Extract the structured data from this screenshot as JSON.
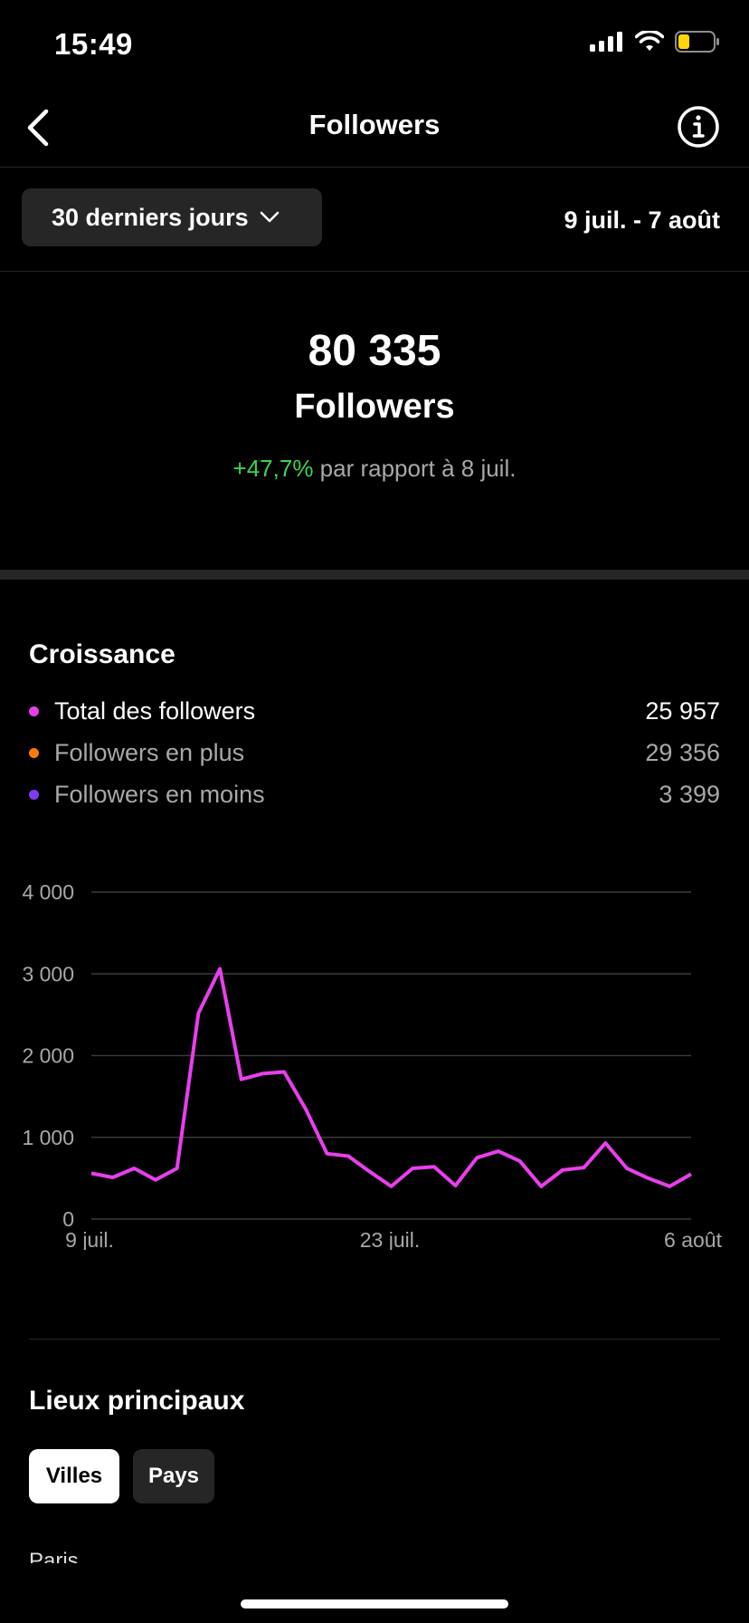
{
  "status_bar": {
    "time": "15:49"
  },
  "nav": {
    "title": "Followers"
  },
  "filter": {
    "period": "30 derniers jours",
    "date_range": "9 juil. - 7 août"
  },
  "summary": {
    "count": "80 335",
    "label": "Followers",
    "change": "+47,7%",
    "change_suffix": "par rapport à 8 juil."
  },
  "growth": {
    "title": "Croissance",
    "legend": [
      {
        "label": "Total des followers",
        "value": "25 957",
        "color": "#e83fec"
      },
      {
        "label": "Followers en plus",
        "value": "29 356",
        "color": "#ff7a00"
      },
      {
        "label": "Followers en moins",
        "value": "3 399",
        "color": "#7f3cf5"
      }
    ]
  },
  "chart_data": {
    "type": "line",
    "title": "",
    "xlabel": "",
    "ylabel": "",
    "ylim": [
      0,
      4000
    ],
    "yticks": [
      0,
      1000,
      2000,
      3000,
      4000
    ],
    "ytick_labels": [
      "0",
      "1 000",
      "2 000",
      "3 000",
      "4 000"
    ],
    "xtick_labels": [
      "9 juil.",
      "23 juil.",
      "6 août"
    ],
    "grid": true,
    "series": [
      {
        "color": "#e83fec",
        "x": [
          "9 juil.",
          "10 juil.",
          "11 juil.",
          "12 juil.",
          "13 juil.",
          "14 juil.",
          "15 juil.",
          "16 juil.",
          "17 juil.",
          "18 juil.",
          "19 juil.",
          "20 juil.",
          "21 juil.",
          "22 juil.",
          "23 juil.",
          "24 juil.",
          "25 juil.",
          "26 juil.",
          "27 juil.",
          "28 juil.",
          "29 juil.",
          "30 juil.",
          "31 juil.",
          "1 août",
          "2 août",
          "3 août",
          "4 août",
          "5 août",
          "6 août"
        ],
        "values": [
          560,
          510,
          620,
          480,
          620,
          2520,
          3060,
          1710,
          1780,
          1800,
          1350,
          800,
          770,
          580,
          400,
          620,
          640,
          410,
          750,
          830,
          710,
          400,
          600,
          630,
          930,
          620,
          500,
          400,
          550
        ]
      }
    ]
  },
  "locations": {
    "title": "Lieux principaux",
    "tabs": [
      "Villes",
      "Pays"
    ],
    "first_item": "Paris"
  }
}
